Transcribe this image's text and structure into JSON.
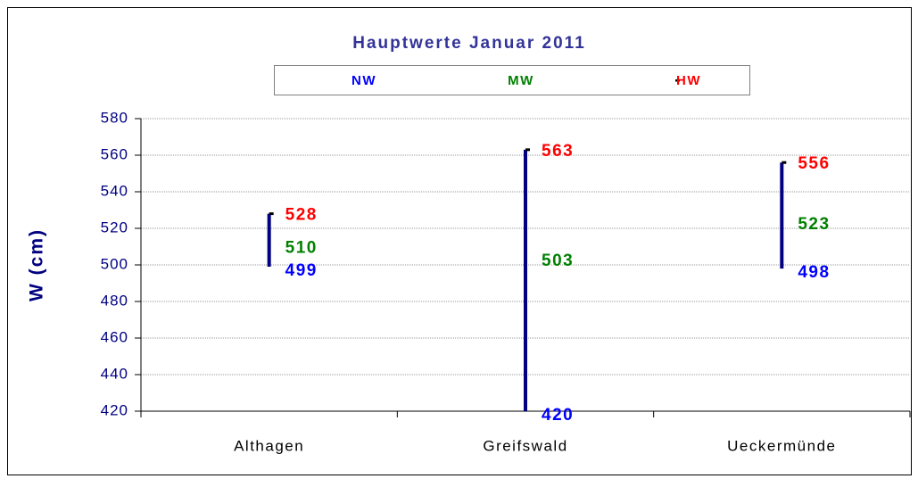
{
  "chart_data": {
    "type": "hilo",
    "title": "Hauptwerte Januar 2011",
    "y_label": "W (cm)",
    "categories": [
      "Althagen",
      "Greifswald",
      "Ueckermünde"
    ],
    "series": [
      {
        "name": "NW",
        "color": "#0000ff",
        "values": [
          499,
          420,
          498
        ]
      },
      {
        "name": "MW",
        "color": "#008000",
        "values": [
          510,
          503,
          523
        ]
      },
      {
        "name": "HW",
        "color": "#ff0000",
        "values": [
          528,
          563,
          556
        ]
      }
    ],
    "line_color": "#000080",
    "marker_color": "#000000",
    "ylim": [
      420,
      580
    ],
    "yticks": [
      420,
      440,
      460,
      480,
      500,
      520,
      540,
      560,
      580
    ],
    "grid": true
  }
}
